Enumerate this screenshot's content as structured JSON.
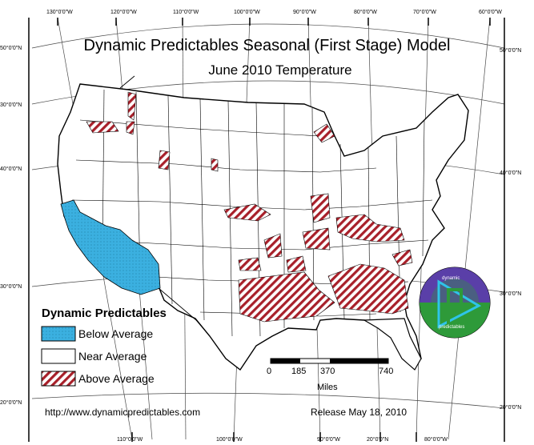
{
  "map": {
    "title": "Dynamic Predictables Seasonal (First Stage) Model",
    "subtitle": "June 2010 Temperature"
  },
  "graticule": {
    "top": [
      "130°0'0\"W",
      "120°0'0\"W",
      "110°0'0\"W",
      "100°0'0\"W",
      "90°0'0\"W",
      "80°0'0\"W",
      "70°0'0\"W",
      "60°0'0\"W"
    ],
    "bottom": [
      "110°0'0\"W",
      "100°0'0\"W",
      "90°0'0\"W",
      "20°0'0\"N",
      "80°0'0\"W"
    ],
    "left": [
      "50°0'0\"N",
      "30°0'0\"N",
      "40°0'0\"N",
      "30°0'0\"N",
      "20°0'0\"N"
    ],
    "right": [
      "50°0'0\"N",
      "40°0'0\"N",
      "30°0'0\"N",
      "20°0'0\"N"
    ]
  },
  "legend": {
    "title": "Dynamic Predictables",
    "items": [
      {
        "label": "Below Average",
        "color": "#3bb0e0",
        "pattern": "dotted"
      },
      {
        "label": "Near Average",
        "color": "#ffffff",
        "pattern": "none"
      },
      {
        "label": "Above Average",
        "color": "#a8202a",
        "pattern": "hatched"
      }
    ]
  },
  "scale_bar": {
    "ticks": [
      "0",
      "185",
      "370",
      "740"
    ],
    "unit": "Miles"
  },
  "logo": {
    "text_top": "dynamic",
    "text_bottom": "predictables",
    "colors": [
      "#5a3fa8",
      "#2e9a3a"
    ]
  },
  "footer": {
    "url": "http://www.dynamicpredictables.com",
    "release": "Release May 18, 2010"
  }
}
